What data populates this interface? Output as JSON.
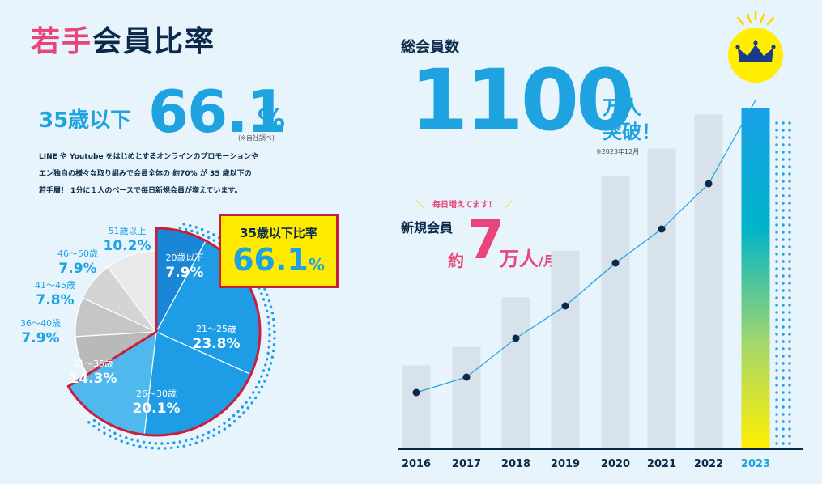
{
  "title": {
    "pink": "若手",
    "dark": "会員比率"
  },
  "ratio": {
    "label": "35歳以下",
    "value": "66.1",
    "unit": "%",
    "note": "(※自社調べ)"
  },
  "description": [
    "LINE や Youtube をはじめとするオンラインのプロモーションや",
    "エン独自の様々な取り組みで会員全体の 約70% が 35 歳以下の",
    "若手層！ 1分に１人のペースで毎日新規会員が増えています。"
  ],
  "callout": {
    "label": "35歳以下比率",
    "value": "66.1",
    "unit": "%"
  },
  "total": {
    "label": "総会員数",
    "value": "1100",
    "unit_line1": "万人",
    "unit_line2": "突破！",
    "note": "※2023年12月"
  },
  "new_members": {
    "tagline": "毎日増えてます！",
    "label": "新規会員",
    "prefix": "約",
    "value": "7",
    "unit": "万人",
    "per": "/月"
  },
  "colors": {
    "accent": "#1ea3e0",
    "pink": "#e8457a",
    "navy": "#0b2a4a",
    "highlight_border": "#c8203c",
    "callout_bg": "#ffeb00"
  },
  "chart_data": [
    {
      "type": "pie",
      "title": "",
      "categories": [
        "20歳以下",
        "21〜25歳",
        "26〜30歳",
        "31〜35歳",
        "36〜40歳",
        "41〜45歳",
        "46〜50歳",
        "51歳以上"
      ],
      "values": [
        7.9,
        23.8,
        20.1,
        14.3,
        7.9,
        7.8,
        7.9,
        10.2
      ],
      "value_labels": [
        "7.9%",
        "23.8%",
        "20.1%",
        "14.3%",
        "7.9%",
        "7.8%",
        "7.9%",
        "10.2%"
      ],
      "colors": [
        "#1a86d6",
        "#1e9de6",
        "#1e9de6",
        "#4fb8ec",
        "#b9b9b9",
        "#c6c6c6",
        "#d4d4d4",
        "#e9e9e9"
      ],
      "highlighted": [
        "20歳以下",
        "21〜25歳",
        "26〜30歳",
        "31〜35歳"
      ]
    },
    {
      "type": "bar",
      "title": "",
      "categories": [
        "2016",
        "2017",
        "2018",
        "2019",
        "2020",
        "2021",
        "2022",
        "2023"
      ],
      "values": [
        270,
        330,
        490,
        640,
        880,
        970,
        1080,
        1100
      ],
      "line_values": [
        270,
        330,
        490,
        640,
        880,
        970,
        1080,
        1100
      ],
      "highlight_category": "2023",
      "grid": false
    }
  ]
}
